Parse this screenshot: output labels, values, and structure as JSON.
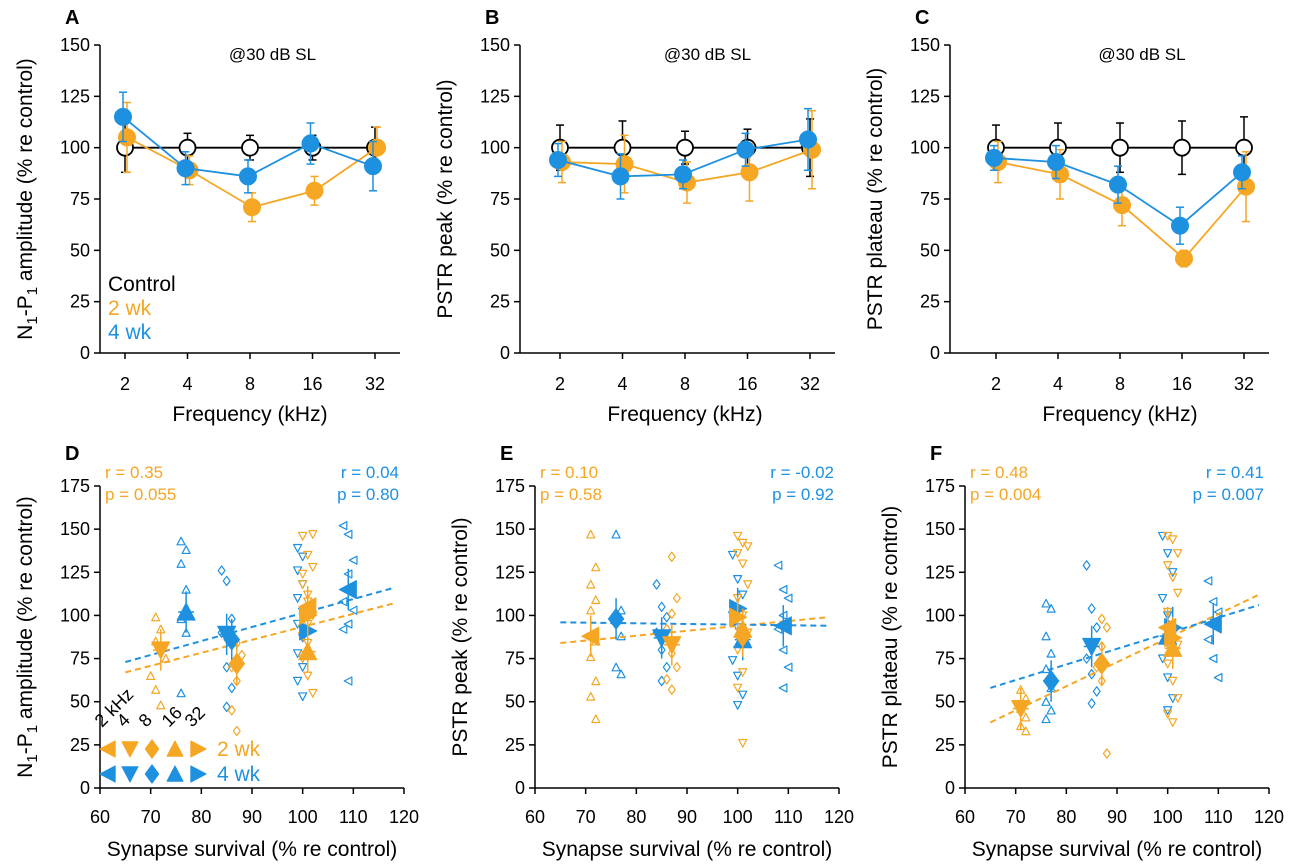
{
  "colors": {
    "control": "#000000",
    "w2": "#f5a623",
    "w4": "#1e90e0"
  },
  "chart_data": [
    {
      "id": "A",
      "type": "line",
      "annotation": "@30 dB SL",
      "xlabel": "Frequency (kHz)",
      "ylabel_parts": [
        "N",
        "1",
        "-P",
        "1",
        " amplitude (% re control)"
      ],
      "categories": [
        "2",
        "4",
        "8",
        "16",
        "32"
      ],
      "ylim": [
        0,
        150
      ],
      "yticks": [
        0,
        25,
        50,
        75,
        100,
        125,
        150
      ],
      "legend": [
        "Control",
        "2 wk",
        "4 wk"
      ],
      "series": [
        {
          "name": "Control",
          "values": [
            100,
            100,
            100,
            100,
            100
          ],
          "err": [
            12,
            7,
            6,
            6,
            10
          ]
        },
        {
          "name": "2 wk",
          "values": [
            105,
            89,
            71,
            79,
            100
          ],
          "err": [
            17,
            7,
            7,
            7,
            10
          ]
        },
        {
          "name": "4 wk",
          "values": [
            115,
            90,
            86,
            102,
            91
          ],
          "err": [
            12,
            8,
            8,
            10,
            12
          ]
        }
      ]
    },
    {
      "id": "B",
      "type": "line",
      "annotation": "@30 dB SL",
      "xlabel": "Frequency (kHz)",
      "ylabel_parts": [
        "PSTR peak (% re control)"
      ],
      "categories": [
        "2",
        "4",
        "8",
        "16",
        "32"
      ],
      "ylim": [
        0,
        150
      ],
      "yticks": [
        0,
        25,
        50,
        75,
        100,
        125,
        150
      ],
      "series": [
        {
          "name": "Control",
          "values": [
            100,
            100,
            100,
            100,
            100
          ],
          "err": [
            11,
            13,
            8,
            9,
            14
          ]
        },
        {
          "name": "2 wk",
          "values": [
            93,
            92,
            83,
            88,
            99
          ],
          "err": [
            10,
            14,
            10,
            14,
            19
          ]
        },
        {
          "name": "4 wk",
          "values": [
            94,
            86,
            87,
            99,
            104
          ],
          "err": [
            8,
            11,
            7,
            8,
            15
          ]
        }
      ]
    },
    {
      "id": "C",
      "type": "line",
      "annotation": "@30 dB SL",
      "xlabel": "Frequency (kHz)",
      "ylabel_parts": [
        "PSTR plateau (% re control)"
      ],
      "categories": [
        "2",
        "4",
        "8",
        "16",
        "32"
      ],
      "ylim": [
        0,
        150
      ],
      "yticks": [
        0,
        25,
        50,
        75,
        100,
        125,
        150
      ],
      "series": [
        {
          "name": "Control",
          "values": [
            100,
            100,
            100,
            100,
            100
          ],
          "err": [
            11,
            12,
            12,
            13,
            15
          ]
        },
        {
          "name": "2 wk",
          "values": [
            93,
            87,
            72,
            46,
            81
          ],
          "err": [
            10,
            12,
            10,
            4,
            17
          ]
        },
        {
          "name": "4 wk",
          "values": [
            95,
            93,
            82,
            62,
            88
          ],
          "err": [
            6,
            8,
            9,
            9,
            8
          ]
        }
      ]
    },
    {
      "id": "D",
      "type": "scatter",
      "xlabel": "Synapse survival (% re control)",
      "ylabel_parts": [
        "N",
        "1",
        "-P",
        "1",
        " amplitude (% re control)"
      ],
      "xlim": [
        60,
        120
      ],
      "xticks": [
        60,
        70,
        80,
        90,
        100,
        110,
        120
      ],
      "ylim": [
        0,
        175
      ],
      "yticks": [
        0,
        25,
        50,
        75,
        100,
        125,
        150,
        175
      ],
      "stats_2wk": [
        "r = 0.35",
        "p = 0.055"
      ],
      "stats_4wk": [
        "r = 0.04",
        "p = 0.80"
      ],
      "trend_2wk": [
        [
          65,
          67
        ],
        [
          118,
          107
        ]
      ],
      "trend_4wk": [
        [
          65,
          73
        ],
        [
          118,
          116
        ]
      ],
      "means_2wk": [
        [
          101,
          105
        ],
        [
          72,
          80
        ],
        [
          87,
          72
        ],
        [
          101,
          79
        ],
        [
          101,
          100
        ]
      ],
      "means_4wk": [
        [
          109,
          115
        ],
        [
          85,
          89
        ],
        [
          86,
          86
        ],
        [
          77,
          102
        ],
        [
          101,
          91
        ]
      ],
      "raw_2wk": [
        [
          71,
          99
        ],
        [
          72,
          92
        ],
        [
          71,
          85
        ],
        [
          73,
          75
        ],
        [
          70,
          65
        ],
        [
          71,
          57
        ],
        [
          72,
          48
        ],
        [
          87,
          84
        ],
        [
          88,
          77
        ],
        [
          86,
          70
        ],
        [
          87,
          62
        ],
        [
          86,
          45
        ],
        [
          87,
          33
        ],
        [
          100,
          146
        ],
        [
          101,
          135
        ],
        [
          102,
          128
        ],
        [
          100,
          118
        ],
        [
          101,
          108
        ],
        [
          102,
          100
        ],
        [
          100,
          92
        ],
        [
          101,
          84
        ],
        [
          100,
          75
        ],
        [
          101,
          65
        ],
        [
          102,
          55
        ],
        [
          100,
          124
        ],
        [
          101,
          112
        ],
        [
          102,
          147
        ],
        [
          100,
          88
        ],
        [
          101,
          95
        ]
      ],
      "raw_4wk": [
        [
          76,
          143
        ],
        [
          77,
          138
        ],
        [
          76,
          130
        ],
        [
          77,
          115
        ],
        [
          76,
          98
        ],
        [
          77,
          90
        ],
        [
          76,
          55
        ],
        [
          84,
          126
        ],
        [
          85,
          120
        ],
        [
          86,
          98
        ],
        [
          84,
          90
        ],
        [
          85,
          70
        ],
        [
          86,
          58
        ],
        [
          85,
          47
        ],
        [
          99,
          139
        ],
        [
          100,
          134
        ],
        [
          99,
          126
        ],
        [
          100,
          118
        ],
        [
          99,
          110
        ],
        [
          100,
          102
        ],
        [
          99,
          95
        ],
        [
          100,
          87
        ],
        [
          99,
          78
        ],
        [
          100,
          70
        ],
        [
          99,
          62
        ],
        [
          100,
          53
        ],
        [
          108,
          152
        ],
        [
          109,
          147
        ],
        [
          110,
          132
        ],
        [
          109,
          124
        ],
        [
          108,
          108
        ],
        [
          110,
          103
        ],
        [
          109,
          95
        ],
        [
          108,
          92
        ],
        [
          109,
          62
        ]
      ],
      "legend_freqs": [
        "2 kHz",
        "4",
        "8",
        "16",
        "32"
      ],
      "legend_groups": [
        "2 wk",
        "4 wk"
      ]
    },
    {
      "id": "E",
      "type": "scatter",
      "xlabel": "Synapse survival (% re control)",
      "ylabel_parts": [
        "PSTR peak (% re control)"
      ],
      "xlim": [
        60,
        120
      ],
      "xticks": [
        60,
        70,
        80,
        90,
        100,
        110,
        120
      ],
      "ylim": [
        0,
        175
      ],
      "yticks": [
        0,
        25,
        50,
        75,
        100,
        125,
        150,
        175
      ],
      "stats_2wk": [
        "r = 0.10",
        "p = 0.58"
      ],
      "stats_4wk": [
        "r = -0.02",
        "p = 0.92"
      ],
      "trend_2wk": [
        [
          65,
          84
        ],
        [
          118,
          99
        ]
      ],
      "trend_4wk": [
        [
          65,
          96
        ],
        [
          118,
          94
        ]
      ],
      "means_2wk": [
        [
          71,
          88
        ],
        [
          87,
          83
        ],
        [
          101,
          88
        ],
        [
          101,
          92
        ],
        [
          100,
          99
        ]
      ],
      "means_4wk": [
        [
          109,
          94
        ],
        [
          85,
          87
        ],
        [
          76,
          98
        ],
        [
          101,
          86
        ],
        [
          100,
          104
        ]
      ],
      "raw_2wk": [
        [
          71,
          147
        ],
        [
          72,
          128
        ],
        [
          71,
          118
        ],
        [
          72,
          109
        ],
        [
          71,
          103
        ],
        [
          72,
          85
        ],
        [
          71,
          76
        ],
        [
          72,
          62
        ],
        [
          71,
          53
        ],
        [
          72,
          40
        ],
        [
          87,
          134
        ],
        [
          88,
          110
        ],
        [
          87,
          101
        ],
        [
          86,
          92
        ],
        [
          87,
          78
        ],
        [
          88,
          70
        ],
        [
          86,
          63
        ],
        [
          87,
          57
        ],
        [
          100,
          146
        ],
        [
          101,
          142
        ],
        [
          102,
          140
        ],
        [
          100,
          136
        ],
        [
          101,
          130
        ],
        [
          102,
          118
        ],
        [
          100,
          110
        ],
        [
          101,
          100
        ],
        [
          102,
          90
        ],
        [
          100,
          80
        ],
        [
          101,
          67
        ],
        [
          100,
          58
        ],
        [
          101,
          26
        ]
      ],
      "raw_4wk": [
        [
          76,
          147
        ],
        [
          77,
          103
        ],
        [
          76,
          97
        ],
        [
          77,
          88
        ],
        [
          76,
          70
        ],
        [
          77,
          66
        ],
        [
          84,
          118
        ],
        [
          85,
          105
        ],
        [
          86,
          99
        ],
        [
          84,
          90
        ],
        [
          85,
          80
        ],
        [
          86,
          70
        ],
        [
          85,
          62
        ],
        [
          99,
          135
        ],
        [
          100,
          121
        ],
        [
          101,
          112
        ],
        [
          99,
          100
        ],
        [
          100,
          93
        ],
        [
          101,
          83
        ],
        [
          99,
          74
        ],
        [
          100,
          65
        ],
        [
          101,
          54
        ],
        [
          100,
          48
        ],
        [
          108,
          129
        ],
        [
          109,
          115
        ],
        [
          110,
          110
        ],
        [
          109,
          100
        ],
        [
          108,
          92
        ],
        [
          109,
          80
        ],
        [
          110,
          70
        ],
        [
          109,
          58
        ]
      ]
    },
    {
      "id": "F",
      "type": "scatter",
      "xlabel": "Synapse survival (% re control)",
      "ylabel_parts": [
        "PSTR plateau (% re control)"
      ],
      "xlim": [
        60,
        120
      ],
      "xticks": [
        60,
        70,
        80,
        90,
        100,
        110,
        120
      ],
      "ylim": [
        0,
        175
      ],
      "yticks": [
        0,
        25,
        50,
        75,
        100,
        125,
        150,
        175
      ],
      "stats_2wk": [
        "r = 0.48",
        "p = 0.004"
      ],
      "stats_4wk": [
        "r = 0.41",
        "p = 0.007"
      ],
      "trend_2wk": [
        [
          65,
          38
        ],
        [
          118,
          112
        ]
      ],
      "trend_4wk": [
        [
          65,
          58
        ],
        [
          118,
          106
        ]
      ],
      "means_2wk": [
        [
          100,
          93
        ],
        [
          71,
          46
        ],
        [
          87,
          72
        ],
        [
          101,
          81
        ],
        [
          101,
          87
        ]
      ],
      "means_4wk": [
        [
          109,
          95
        ],
        [
          85,
          82
        ],
        [
          77,
          62
        ],
        [
          100,
          88
        ],
        [
          101,
          93
        ]
      ],
      "raw_2wk": [
        [
          71,
          57
        ],
        [
          72,
          52
        ],
        [
          71,
          46
        ],
        [
          72,
          41
        ],
        [
          71,
          36
        ],
        [
          72,
          33
        ],
        [
          87,
          98
        ],
        [
          88,
          93
        ],
        [
          87,
          82
        ],
        [
          86,
          70
        ],
        [
          87,
          62
        ],
        [
          88,
          20
        ],
        [
          100,
          146
        ],
        [
          101,
          144
        ],
        [
          102,
          136
        ],
        [
          100,
          129
        ],
        [
          101,
          122
        ],
        [
          102,
          113
        ],
        [
          100,
          102
        ],
        [
          101,
          92
        ],
        [
          102,
          83
        ],
        [
          100,
          72
        ],
        [
          101,
          62
        ],
        [
          102,
          52
        ],
        [
          100,
          43
        ],
        [
          101,
          38
        ]
      ],
      "raw_4wk": [
        [
          76,
          107
        ],
        [
          77,
          104
        ],
        [
          76,
          88
        ],
        [
          77,
          78
        ],
        [
          76,
          69
        ],
        [
          77,
          58
        ],
        [
          76,
          50
        ],
        [
          77,
          45
        ],
        [
          76,
          40
        ],
        [
          84,
          129
        ],
        [
          85,
          104
        ],
        [
          86,
          93
        ],
        [
          84,
          75
        ],
        [
          85,
          66
        ],
        [
          86,
          56
        ],
        [
          85,
          49
        ],
        [
          99,
          146
        ],
        [
          100,
          136
        ],
        [
          101,
          125
        ],
        [
          99,
          110
        ],
        [
          100,
          100
        ],
        [
          101,
          85
        ],
        [
          99,
          75
        ],
        [
          100,
          64
        ],
        [
          101,
          52
        ],
        [
          100,
          45
        ],
        [
          108,
          120
        ],
        [
          109,
          108
        ],
        [
          110,
          102
        ],
        [
          109,
          94
        ],
        [
          108,
          86
        ],
        [
          109,
          75
        ],
        [
          110,
          64
        ]
      ]
    }
  ]
}
